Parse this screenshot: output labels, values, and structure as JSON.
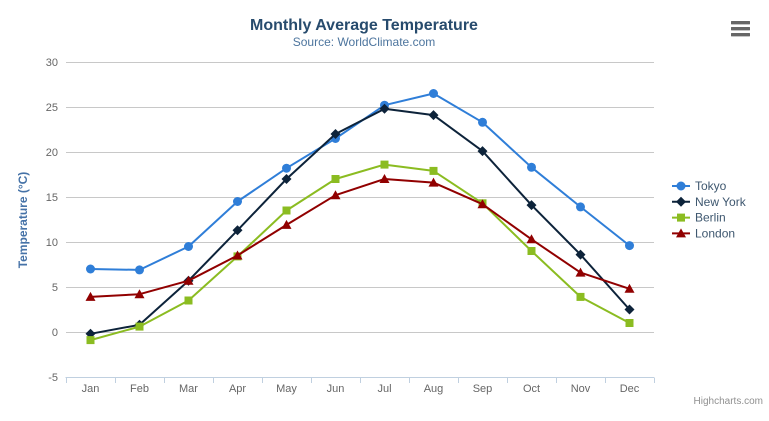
{
  "chart_data": {
    "type": "line",
    "title": "Monthly Average Temperature",
    "subtitle": "Source: WorldClimate.com",
    "xlabel": "",
    "ylabel": "Temperature (°C)",
    "categories": [
      "Jan",
      "Feb",
      "Mar",
      "Apr",
      "May",
      "Jun",
      "Jul",
      "Aug",
      "Sep",
      "Oct",
      "Nov",
      "Dec"
    ],
    "series": [
      {
        "name": "Tokyo",
        "color": "#2f7ed8",
        "marker": "circle",
        "values": [
          7.0,
          6.9,
          9.5,
          14.5,
          18.2,
          21.5,
          25.2,
          26.5,
          23.3,
          18.3,
          13.9,
          9.6
        ]
      },
      {
        "name": "New York",
        "color": "#0d233a",
        "marker": "diamond",
        "values": [
          -0.2,
          0.8,
          5.7,
          11.3,
          17.0,
          22.0,
          24.8,
          24.1,
          20.1,
          14.1,
          8.6,
          2.5
        ]
      },
      {
        "name": "Berlin",
        "color": "#8bbc21",
        "marker": "square",
        "values": [
          -0.9,
          0.6,
          3.5,
          8.4,
          13.5,
          17.0,
          18.6,
          17.9,
          14.3,
          9.0,
          3.9,
          1.0
        ]
      },
      {
        "name": "London",
        "color": "#910000",
        "marker": "triangle",
        "values": [
          3.9,
          4.2,
          5.7,
          8.5,
          11.9,
          15.2,
          17.0,
          16.6,
          14.2,
          10.3,
          6.6,
          4.8
        ]
      }
    ],
    "ylim": [
      -5,
      30
    ],
    "y_ticks": [
      -5,
      0,
      5,
      10,
      15,
      20,
      25,
      30
    ],
    "grid": "horizontal",
    "legend_position": "right",
    "legend_items": [
      "Tokyo",
      "New York",
      "Berlin",
      "London"
    ]
  },
  "credits": {
    "label": "Highcharts.com"
  },
  "controls": {
    "context_menu_icon": "hamburger-icon"
  },
  "colors": {
    "grid": "#c8c8c8",
    "axis_line": "#c0d0e0",
    "tick_text": "#666666",
    "legend_text": "#3e576f",
    "context_button": "#666666"
  }
}
